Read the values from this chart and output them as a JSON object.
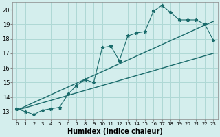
{
  "xlabel": "Humidex (Indice chaleur)",
  "bg_color": "#d4eeed",
  "line_color": "#1a6b6b",
  "grid_color": "#aed8d5",
  "x_data": [
    0,
    1,
    2,
    3,
    4,
    5,
    6,
    7,
    8,
    9,
    10,
    11,
    12,
    13,
    14,
    15,
    16,
    17,
    18,
    19,
    20,
    21,
    22,
    23
  ],
  "y_main": [
    13.2,
    13.0,
    12.8,
    13.1,
    13.2,
    13.3,
    14.2,
    14.8,
    15.2,
    15.0,
    17.4,
    17.5,
    16.5,
    18.2,
    18.4,
    18.5,
    19.9,
    20.3,
    19.8,
    19.3,
    19.3,
    19.3,
    19.0,
    17.9
  ],
  "y_low_start": 13.1,
  "y_low_end": 17.0,
  "y_high_start": 13.1,
  "y_high_end": 19.2,
  "xlim": [
    -0.5,
    23.5
  ],
  "ylim": [
    12.5,
    20.5
  ],
  "yticks": [
    13,
    14,
    15,
    16,
    17,
    18,
    19,
    20
  ],
  "xticks": [
    0,
    1,
    2,
    3,
    4,
    5,
    6,
    7,
    8,
    9,
    10,
    11,
    12,
    13,
    14,
    15,
    16,
    17,
    18,
    19,
    20,
    21,
    22,
    23
  ]
}
